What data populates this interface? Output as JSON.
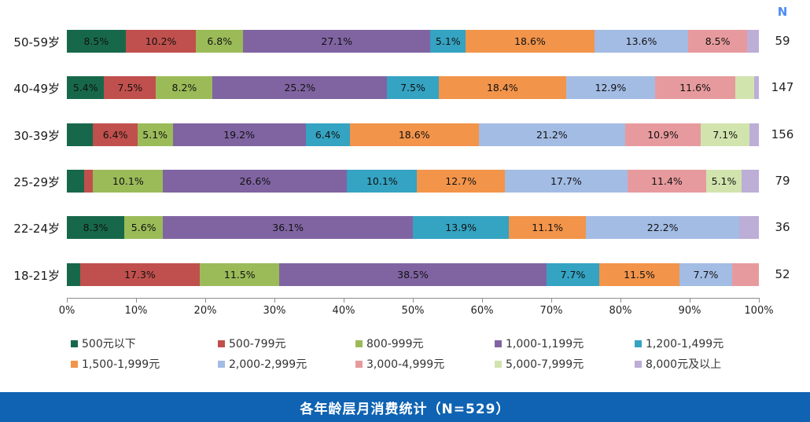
{
  "n_header": "N",
  "title": "各年龄层月消费统计（N=529）",
  "chart_data": {
    "type": "bar",
    "subtype": "horizontal-stacked-percent",
    "title": "各年龄层月消费统计（N=529）",
    "xlabel": "",
    "ylabel": "",
    "xlim": [
      0,
      100
    ],
    "x_ticks": [
      "0%",
      "10%",
      "20%",
      "30%",
      "40%",
      "50%",
      "60%",
      "70%",
      "80%",
      "90%",
      "100%"
    ],
    "grid": false,
    "legend_position": "bottom",
    "n_column_header": "N",
    "categories": [
      "50-59岁",
      "40-49岁",
      "30-39岁",
      "25-29岁",
      "22-24岁",
      "18-21岁"
    ],
    "n_values": [
      59,
      147,
      156,
      79,
      36,
      52
    ],
    "label_min_value": 5,
    "series": [
      {
        "name": "500元以下",
        "color": "#17684b",
        "values": [
          8.5,
          5.4,
          3.8,
          2.5,
          8.3,
          1.9
        ]
      },
      {
        "name": "500-799元",
        "color": "#c0504d",
        "values": [
          10.2,
          7.5,
          6.4,
          1.3,
          0,
          17.3
        ]
      },
      {
        "name": "800-999元",
        "color": "#9bbb59",
        "values": [
          6.8,
          8.2,
          5.1,
          10.1,
          5.6,
          11.5
        ]
      },
      {
        "name": "1,000-1,199元",
        "color": "#8064a2",
        "values": [
          27.1,
          25.2,
          19.2,
          26.6,
          36.1,
          38.5
        ]
      },
      {
        "name": "1,200-1,499元",
        "color": "#35a3c2",
        "values": [
          5.1,
          7.5,
          6.4,
          10.1,
          13.9,
          7.7
        ]
      },
      {
        "name": "1,500-1,999元",
        "color": "#f2944a",
        "values": [
          18.6,
          18.4,
          18.6,
          12.7,
          11.1,
          11.5
        ]
      },
      {
        "name": "2,000-2,999元",
        "color": "#a3bce4",
        "values": [
          13.6,
          12.9,
          21.2,
          17.7,
          22.2,
          7.7
        ]
      },
      {
        "name": "3,000-4,999元",
        "color": "#e79a9d",
        "values": [
          8.5,
          11.6,
          10.9,
          11.4,
          0,
          3.8
        ]
      },
      {
        "name": "5,000-7,999元",
        "color": "#d2e4ae",
        "values": [
          0,
          2.7,
          7.1,
          5.1,
          0,
          0
        ]
      },
      {
        "name": "8,000元及以上",
        "color": "#bcaed6",
        "values": [
          1.7,
          0.7,
          1.3,
          2.5,
          2.8,
          0
        ]
      }
    ]
  },
  "layout_colors": {
    "title_bar_bg": "#0f63b2",
    "title_text": "#ffffff",
    "n_header_text": "#4d8cf5",
    "axis": "#8c8c8c"
  }
}
